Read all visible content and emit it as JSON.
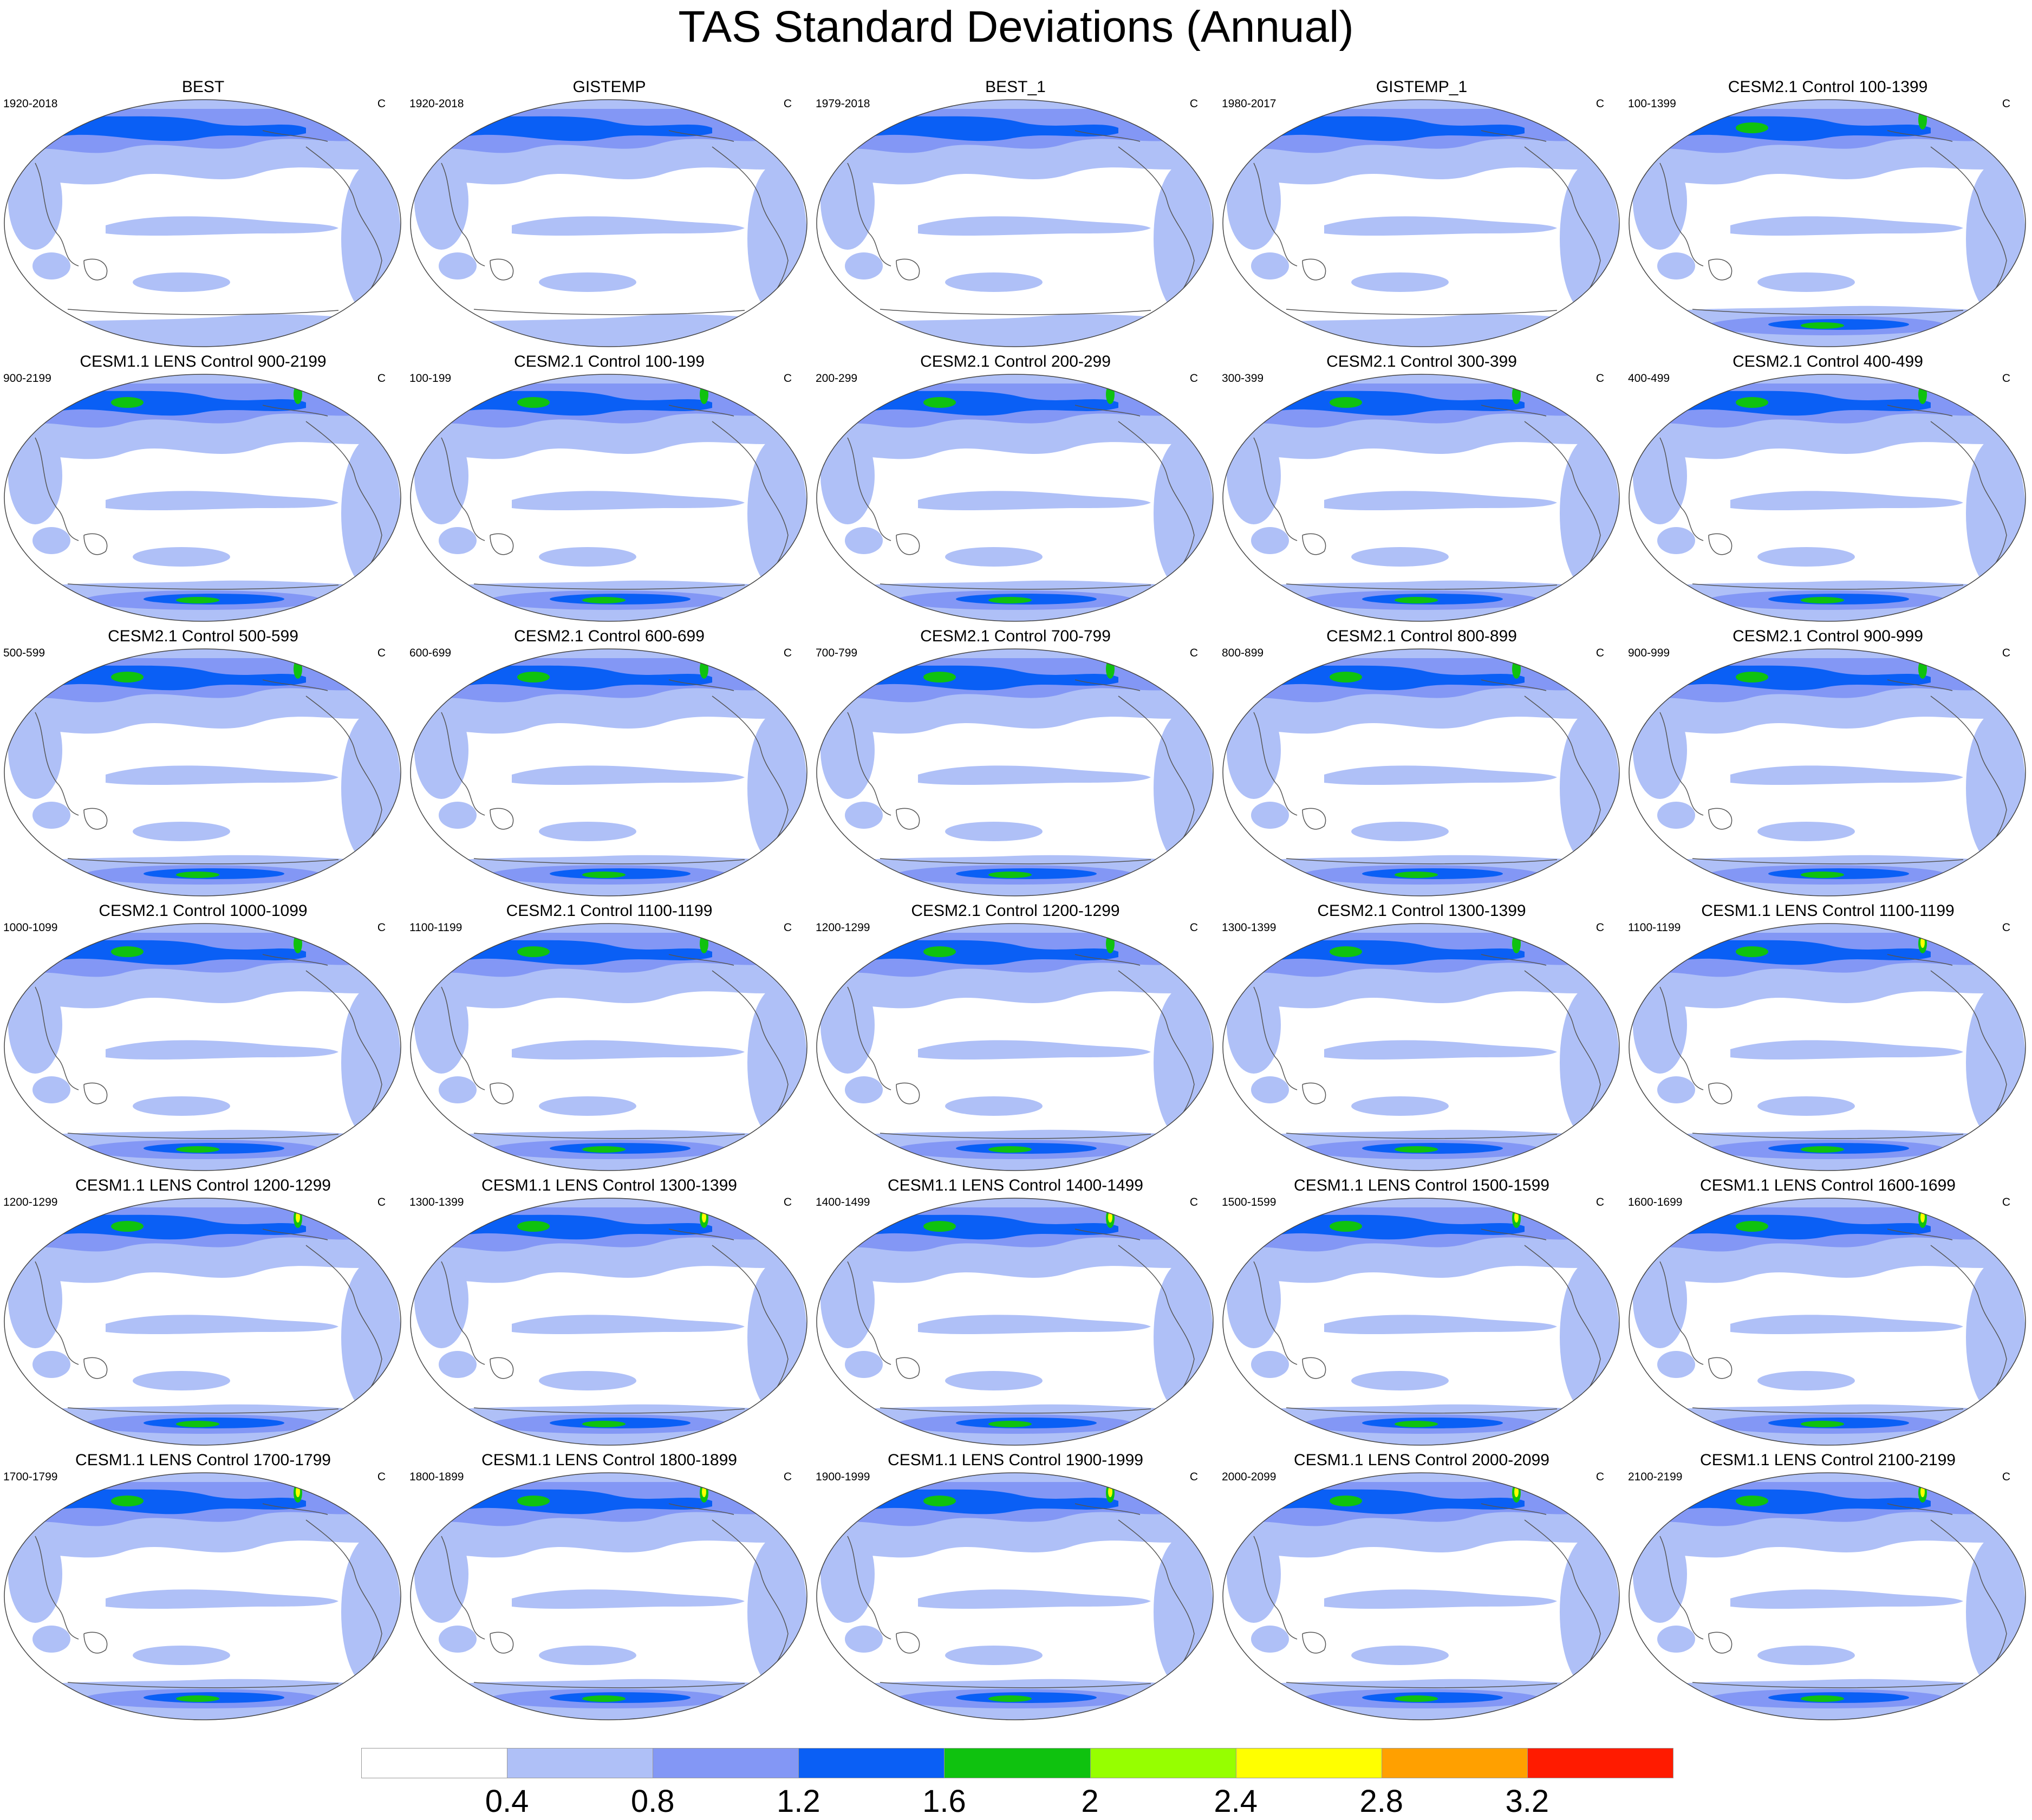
{
  "title": "TAS Standard Deviations (Annual)",
  "units": "C",
  "panels": [
    {
      "title": "BEST",
      "left": "1920-2018",
      "right": "C"
    },
    {
      "title": "GISTEMP",
      "left": "1920-2018",
      "right": "C"
    },
    {
      "title": "BEST_1",
      "left": "1979-2018",
      "right": "C"
    },
    {
      "title": "GISTEMP_1",
      "left": "1980-2017",
      "right": "C"
    },
    {
      "title": "CESM2.1 Control 100-1399",
      "left": "100-1399",
      "right": "C"
    },
    {
      "title": "CESM1.1 LENS Control 900-2199",
      "left": "900-2199",
      "right": "C"
    },
    {
      "title": "CESM2.1 Control 100-199",
      "left": "100-199",
      "right": "C"
    },
    {
      "title": "CESM2.1 Control 200-299",
      "left": "200-299",
      "right": "C"
    },
    {
      "title": "CESM2.1 Control 300-399",
      "left": "300-399",
      "right": "C"
    },
    {
      "title": "CESM2.1 Control 400-499",
      "left": "400-499",
      "right": "C"
    },
    {
      "title": "CESM2.1 Control 500-599",
      "left": "500-599",
      "right": "C"
    },
    {
      "title": "CESM2.1 Control 600-699",
      "left": "600-699",
      "right": "C"
    },
    {
      "title": "CESM2.1 Control 700-799",
      "left": "700-799",
      "right": "C"
    },
    {
      "title": "CESM2.1 Control 800-899",
      "left": "800-899",
      "right": "C"
    },
    {
      "title": "CESM2.1 Control 900-999",
      "left": "900-999",
      "right": "C"
    },
    {
      "title": "CESM2.1 Control 1000-1099",
      "left": "1000-1099",
      "right": "C"
    },
    {
      "title": "CESM2.1 Control 1100-1199",
      "left": "1100-1199",
      "right": "C"
    },
    {
      "title": "CESM2.1 Control 1200-1299",
      "left": "1200-1299",
      "right": "C"
    },
    {
      "title": "CESM2.1 Control 1300-1399",
      "left": "1300-1399",
      "right": "C"
    },
    {
      "title": "CESM1.1 LENS Control 1100-1199",
      "left": "1100-1199",
      "right": "C"
    },
    {
      "title": "CESM1.1 LENS Control 1200-1299",
      "left": "1200-1299",
      "right": "C"
    },
    {
      "title": "CESM1.1 LENS Control 1300-1399",
      "left": "1300-1399",
      "right": "C"
    },
    {
      "title": "CESM1.1 LENS Control 1400-1499",
      "left": "1400-1499",
      "right": "C"
    },
    {
      "title": "CESM1.1 LENS Control 1500-1599",
      "left": "1500-1599",
      "right": "C"
    },
    {
      "title": "CESM1.1 LENS Control 1600-1699",
      "left": "1600-1699",
      "right": "C"
    },
    {
      "title": "CESM1.1 LENS Control 1700-1799",
      "left": "1700-1799",
      "right": "C"
    },
    {
      "title": "CESM1.1 LENS Control 1800-1899",
      "left": "1800-1899",
      "right": "C"
    },
    {
      "title": "CESM1.1 LENS Control 1900-1999",
      "left": "1900-1999",
      "right": "C"
    },
    {
      "title": "CESM1.1 LENS Control 2000-2099",
      "left": "2000-2099",
      "right": "C"
    },
    {
      "title": "CESM1.1 LENS Control 2100-2199",
      "left": "2100-2199",
      "right": "C"
    }
  ],
  "colorbar": {
    "levels": [
      "0.4",
      "0.8",
      "1.2",
      "1.6",
      "2",
      "2.4",
      "2.8",
      "3.2"
    ],
    "colors": [
      "#ffffff",
      "#afc0f7",
      "#8397f5",
      "#0a5ff5",
      "#0fc20f",
      "#96ff00",
      "#ffff00",
      "#ffa000",
      "#ff1b00"
    ]
  }
}
